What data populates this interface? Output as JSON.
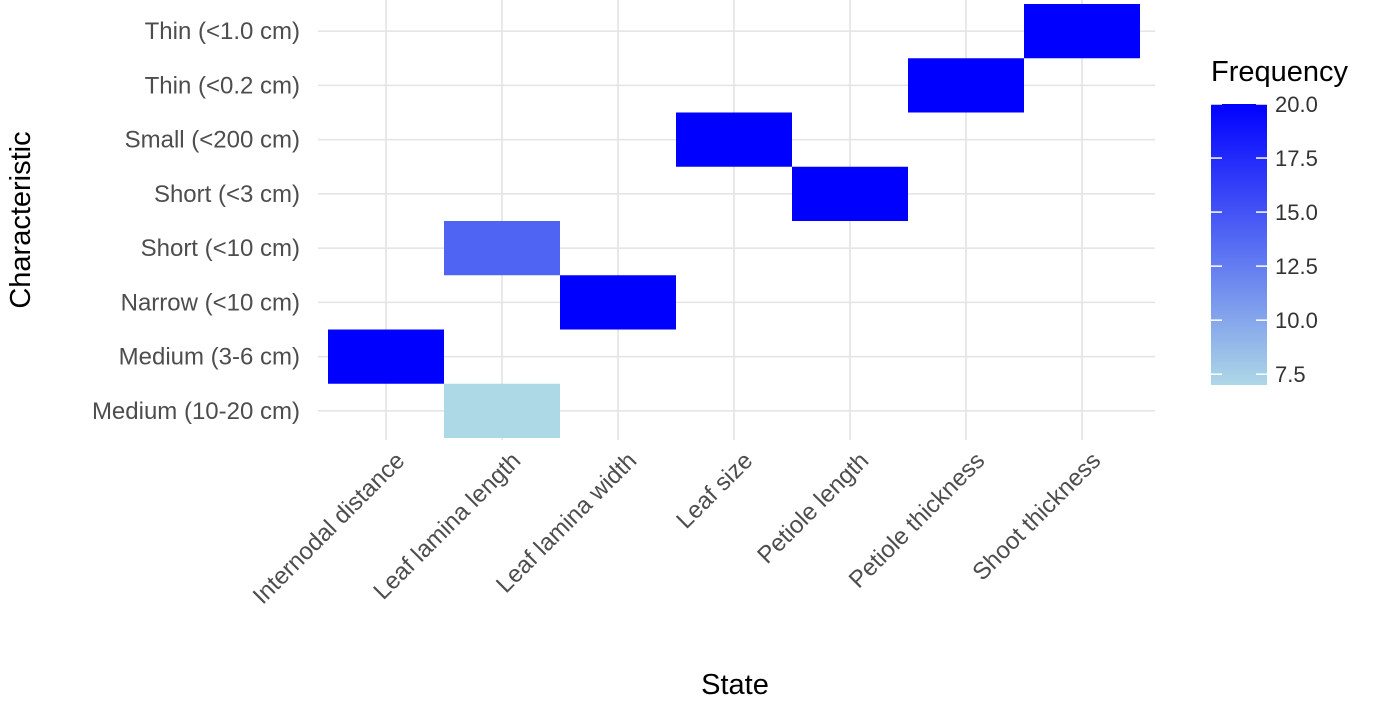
{
  "chart_data": {
    "type": "heatmap",
    "xlabel": "State",
    "ylabel": "Characteristic",
    "x_categories": [
      "Internodal distance",
      "Leaf lamina length",
      "Leaf lamina width",
      "Leaf size",
      "Petiole length",
      "Petiole thickness",
      "Shoot thickness"
    ],
    "y_categories": [
      "Medium (10-20 cm)",
      "Medium (3-6 cm)",
      "Narrow (<10 cm)",
      "Short (<10 cm)",
      "Short (<3 cm)",
      "Small (<200 cm)",
      "Thin (<0.2 cm)",
      "Thin (<1.0 cm)"
    ],
    "cells": [
      {
        "x": "Internodal distance",
        "y": "Medium (3-6 cm)",
        "value": 20
      },
      {
        "x": "Leaf lamina length",
        "y": "Medium (10-20 cm)",
        "value": 7
      },
      {
        "x": "Leaf lamina length",
        "y": "Short (<10 cm)",
        "value": 14
      },
      {
        "x": "Leaf lamina width",
        "y": "Narrow (<10 cm)",
        "value": 20
      },
      {
        "x": "Leaf size",
        "y": "Small (<200 cm)",
        "value": 20
      },
      {
        "x": "Petiole length",
        "y": "Short (<3 cm)",
        "value": 20
      },
      {
        "x": "Petiole thickness",
        "y": "Thin (<0.2 cm)",
        "value": 20
      },
      {
        "x": "Shoot thickness",
        "y": "Thin (<1.0 cm)",
        "value": 20
      }
    ],
    "legend": {
      "title": "Frequency",
      "placement": "right",
      "min": 7,
      "max": 20,
      "low_color": "#add8e6",
      "high_color": "#0000ff",
      "ticks": [
        "7.5",
        "10.0",
        "12.5",
        "15.0",
        "17.5",
        "20.0"
      ],
      "tick_values": [
        7.5,
        10,
        12.5,
        15,
        17.5,
        20
      ]
    },
    "grid": true
  }
}
